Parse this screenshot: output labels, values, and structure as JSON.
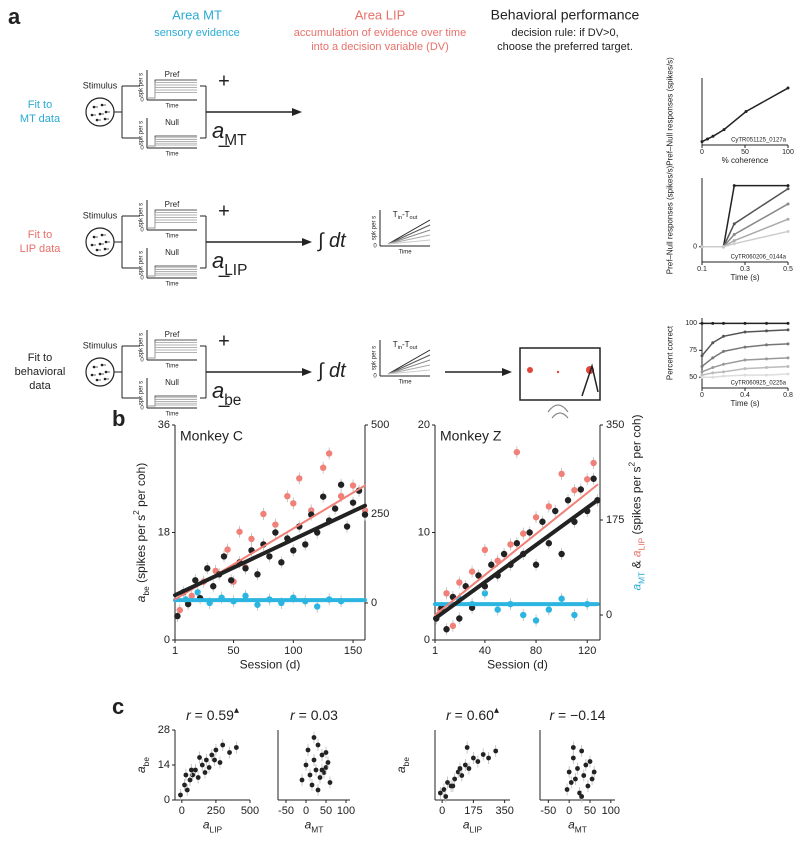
{
  "panel_labels": [
    "a",
    "b",
    "c"
  ],
  "header": {
    "mt_title": "Area MT",
    "mt_sub": "sensory evidence",
    "lip_title": "Area LIP",
    "lip_sub": [
      "accumulation of evidence over time",
      "into a decision variable (DV)"
    ],
    "beh_title": "Behavioral performance",
    "beh_sub": [
      "decision rule:  if DV>0,",
      "choose the preferred target."
    ]
  },
  "rows": [
    {
      "label": [
        "Fit to",
        "MT data"
      ],
      "color": "#29abd4",
      "weight": [
        {
          "text": "a",
          "style": "italic"
        },
        {
          "text": "MT",
          "style": "sub"
        }
      ]
    },
    {
      "label": [
        "Fit to",
        "LIP data"
      ],
      "color": "#e9706a",
      "weight": [
        {
          "text": "a",
          "style": "italic"
        },
        {
          "text": "LIP",
          "style": "sub"
        }
      ]
    },
    {
      "label": [
        "Fit to",
        "behavioral",
        "data"
      ],
      "color": "#222222",
      "weight": [
        {
          "text": "a",
          "style": "italic"
        },
        {
          "text": "be",
          "style": "sub"
        }
      ]
    }
  ],
  "diagram": {
    "stimulus": "Stimulus",
    "pref": "Pref",
    "null": "Null",
    "spk": "spk per s",
    "time": "Time",
    "zero": "0",
    "plus": "+",
    "minus": "–",
    "integral": [
      {
        "text": "∫ "
      },
      {
        "text": "dt",
        "style": "italic"
      }
    ],
    "dv_label": [
      {
        "text": "T"
      },
      {
        "text": "in",
        "style": "sub"
      },
      {
        "text": "-T"
      },
      {
        "text": "out",
        "style": "sub"
      }
    ]
  },
  "chart_data": [
    {
      "type": "line",
      "x": [
        0,
        6.4,
        12.8,
        25.6,
        51.2,
        100
      ],
      "series": [
        {
          "color": "#222222",
          "values": [
            0,
            4,
            8,
            18,
            45,
            80
          ]
        }
      ],
      "xlim": [
        0,
        100
      ],
      "ylim": [
        -5,
        95
      ],
      "xticks": [
        0,
        50,
        100
      ],
      "xlabel": "% coherence",
      "ylabel": "Pref–Null responses (spikes/s)",
      "annotation": "CyTR051125_0127a"
    },
    {
      "type": "line",
      "x": [
        0.1,
        0.2,
        0.25,
        0.5
      ],
      "series": [
        {
          "color": "#222222",
          "values": [
            0,
            0,
            40,
            40
          ]
        },
        {
          "color": "#555555",
          "values": [
            0,
            0,
            15,
            38
          ]
        },
        {
          "color": "#888888",
          "values": [
            0,
            0,
            8,
            28
          ]
        },
        {
          "color": "#aaaaaa",
          "values": [
            0,
            0,
            4,
            18
          ]
        },
        {
          "color": "#cccccc",
          "values": [
            0,
            0,
            2,
            10
          ]
        }
      ],
      "xlim": [
        0.1,
        0.5
      ],
      "ylim": [
        -10,
        45
      ],
      "xticks": [
        0.1,
        0.3,
        0.5
      ],
      "yticks": [
        0
      ],
      "xlabel": "Time (s)",
      "ylabel": "Pref–Null responses (spikes/s)",
      "annotation": "CyTR060206_0144a"
    },
    {
      "type": "line",
      "x": [
        0,
        0.1,
        0.2,
        0.4,
        0.6,
        0.8
      ],
      "series": [
        {
          "color": "#222222",
          "values": [
            100,
            100,
            100,
            100,
            100,
            100
          ]
        },
        {
          "color": "#555555",
          "values": [
            70,
            82,
            88,
            92,
            93,
            94
          ]
        },
        {
          "color": "#777777",
          "values": [
            60,
            68,
            74,
            78,
            80,
            81
          ]
        },
        {
          "color": "#999999",
          "values": [
            55,
            59,
            62,
            66,
            67,
            68
          ]
        },
        {
          "color": "#bbbbbb",
          "values": [
            52,
            54,
            55,
            58,
            59,
            60
          ]
        },
        {
          "color": "#dddddd",
          "values": [
            50,
            50,
            51,
            52,
            52,
            53
          ]
        }
      ],
      "xlim": [
        0,
        0.8
      ],
      "ylim": [
        40,
        105
      ],
      "xticks": [
        0,
        0.4,
        0.8
      ],
      "yticks": [
        50,
        75,
        100
      ],
      "xlabel": "Time (s)",
      "ylabel": "Percent correct",
      "annotation": "CyTR060925_0225a"
    },
    {
      "type": "scatter",
      "title": "Monkey C",
      "xlim": [
        1,
        160
      ],
      "xticks": [
        1,
        50,
        100,
        150
      ],
      "ylim": [
        0,
        36
      ],
      "yticks": [
        0,
        18,
        36
      ],
      "y2lim": [
        -104,
        500
      ],
      "y2ticks": [
        0,
        250,
        500
      ],
      "xlabel": "Session (d)",
      "ylabel": [
        {
          "text": "a",
          "style": "italic"
        },
        {
          "text": "be",
          "style": "sub"
        },
        {
          "text": " (spikes per s"
        },
        {
          "text": "2",
          "style": "sup"
        },
        {
          "text": " per coh)"
        }
      ],
      "series": [
        {
          "color": "#f08078",
          "axis": "y2",
          "x": [
            5,
            15,
            25,
            35,
            45,
            50,
            55,
            60,
            65,
            75,
            85,
            95,
            100,
            105,
            115,
            125,
            130,
            140,
            150,
            160
          ],
          "values": [
            -20,
            20,
            60,
            90,
            150,
            60,
            200,
            100,
            180,
            250,
            220,
            300,
            280,
            350,
            260,
            380,
            420,
            300,
            330,
            260
          ]
        },
        {
          "color": "#2bb5e0",
          "axis": "y2",
          "x": [
            10,
            20,
            30,
            40,
            50,
            60,
            70,
            80,
            90,
            100,
            110,
            120,
            130,
            140
          ],
          "values": [
            10,
            30,
            0,
            15,
            5,
            20,
            -5,
            10,
            0,
            15,
            5,
            -10,
            10,
            5
          ]
        },
        {
          "color": "#222222",
          "x": [
            3,
            8,
            12,
            18,
            22,
            28,
            33,
            38,
            42,
            48,
            55,
            60,
            65,
            70,
            75,
            80,
            85,
            90,
            95,
            100,
            105,
            110,
            115,
            120,
            125,
            130,
            135,
            140,
            145,
            150,
            155,
            160
          ],
          "values": [
            4,
            8,
            6,
            10,
            7,
            12,
            9,
            11,
            14,
            10,
            13,
            12,
            15,
            11,
            16,
            14,
            18,
            13,
            17,
            15,
            19,
            16,
            21,
            18,
            24,
            20,
            22,
            26,
            19,
            23,
            25,
            21
          ]
        }
      ],
      "fits": [
        {
          "color": "#2bb5e0",
          "axis": "y2",
          "x": [
            1,
            160
          ],
          "values": [
            8,
            8
          ]
        },
        {
          "color": "#f08078",
          "axis": "y2",
          "x": [
            1,
            160
          ],
          "values": [
            10,
            330
          ]
        },
        {
          "color": "#222222",
          "x": [
            1,
            160
          ],
          "values": [
            7.5,
            22.5
          ]
        }
      ]
    },
    {
      "type": "scatter",
      "title": "Monkey Z",
      "xlim": [
        1,
        130
      ],
      "xticks": [
        1,
        40,
        80,
        120
      ],
      "ylim": [
        0,
        20
      ],
      "yticks": [
        0,
        10,
        20
      ],
      "y2lim": [
        -46,
        350
      ],
      "y2ticks": [
        0,
        175,
        350
      ],
      "xlabel": "Session (d)",
      "y2label": [
        {
          "text": "a",
          "style": "italic",
          "color": "#29abd4"
        },
        {
          "text": "MT",
          "style": "sub",
          "color": "#29abd4"
        },
        {
          "text": " & "
        },
        {
          "text": "a",
          "style": "italic",
          "color": "#e9706a"
        },
        {
          "text": "LIP",
          "style": "sub",
          "color": "#e9706a"
        },
        {
          "text": " (spikes per s"
        },
        {
          "text": "2",
          "style": "sup"
        },
        {
          "text": " per coh)"
        }
      ],
      "series": [
        {
          "color": "#f08078",
          "axis": "y2",
          "x": [
            5,
            10,
            15,
            20,
            30,
            40,
            50,
            60,
            65,
            70,
            80,
            90,
            100,
            110,
            120,
            125
          ],
          "values": [
            10,
            40,
            -20,
            60,
            80,
            120,
            100,
            130,
            300,
            150,
            180,
            200,
            260,
            230,
            250,
            280
          ]
        },
        {
          "color": "#2bb5e0",
          "axis": "y2",
          "x": [
            20,
            30,
            40,
            50,
            60,
            70,
            80,
            90,
            100,
            110,
            120
          ],
          "values": [
            30,
            20,
            40,
            10,
            20,
            0,
            -10,
            10,
            30,
            0,
            20
          ]
        },
        {
          "color": "#222222",
          "x": [
            2,
            6,
            10,
            15,
            20,
            25,
            30,
            35,
            40,
            45,
            50,
            55,
            60,
            65,
            70,
            75,
            80,
            85,
            90,
            95,
            100,
            105,
            110,
            115,
            120,
            125,
            128
          ],
          "values": [
            2,
            3,
            1,
            4,
            2,
            5,
            3,
            6,
            5,
            7,
            6,
            8,
            7,
            9,
            8,
            10,
            7,
            11,
            9,
            12,
            8,
            13,
            11,
            14,
            12,
            15,
            13
          ]
        }
      ],
      "fits": [
        {
          "color": "#2bb5e0",
          "axis": "y2",
          "x": [
            1,
            128
          ],
          "values": [
            20,
            20
          ]
        },
        {
          "color": "#f08078",
          "axis": "y2",
          "x": [
            1,
            128
          ],
          "values": [
            0,
            240
          ]
        },
        {
          "color": "#222222",
          "x": [
            1,
            128
          ],
          "values": [
            2,
            13
          ]
        }
      ]
    },
    {
      "type": "scatter",
      "title": [
        {
          "text": "r",
          "style": "italic"
        },
        {
          "text": " = 0.59"
        },
        {
          "text": "▴",
          "style": "sup"
        }
      ],
      "xlim": [
        -50,
        500
      ],
      "xticks": [
        0,
        250,
        500
      ],
      "ylim": [
        0,
        28
      ],
      "yticks": [
        0,
        14,
        28
      ],
      "xlabel": [
        {
          "text": "a",
          "style": "italic"
        },
        {
          "text": "LIP",
          "style": "sub"
        }
      ],
      "ylabel": [
        {
          "text": "a",
          "style": "italic"
        },
        {
          "text": "be",
          "style": "sub"
        }
      ],
      "series": [
        {
          "color": "#222222",
          "x": [
            -10,
            20,
            40,
            60,
            80,
            100,
            120,
            150,
            180,
            200,
            220,
            250,
            280,
            300,
            350,
            400,
            30,
            70,
            130,
            170,
            240
          ],
          "values": [
            2,
            6,
            4,
            8,
            10,
            12,
            9,
            14,
            16,
            13,
            18,
            20,
            15,
            22,
            19,
            21,
            10,
            12,
            17,
            11,
            16
          ]
        }
      ]
    },
    {
      "type": "scatter",
      "title": [
        {
          "text": "r",
          "style": "italic"
        },
        {
          "text": " = 0.03"
        }
      ],
      "xlim": [
        -70,
        110
      ],
      "xticks": [
        -50,
        0,
        50,
        100
      ],
      "ylim": [
        0,
        28
      ],
      "xlabel": [
        {
          "text": "a",
          "style": "italic"
        },
        {
          "text": "MT",
          "style": "sub"
        }
      ],
      "series": [
        {
          "color": "#222222",
          "x": [
            -10,
            0,
            5,
            10,
            15,
            20,
            25,
            30,
            35,
            40,
            45,
            50,
            55,
            60,
            20,
            30,
            40,
            50
          ],
          "values": [
            8,
            14,
            20,
            10,
            6,
            16,
            12,
            22,
            9,
            18,
            11,
            13,
            15,
            7,
            25,
            4,
            12,
            19
          ]
        }
      ]
    },
    {
      "type": "scatter",
      "title": [
        {
          "text": "r",
          "style": "italic"
        },
        {
          "text": " = 0.60"
        },
        {
          "text": "▴",
          "style": "sup"
        }
      ],
      "xlim": [
        -40,
        380
      ],
      "xticks": [
        0,
        175,
        350
      ],
      "ylim": [
        0,
        20
      ],
      "xlabel": [
        {
          "text": "a",
          "style": "italic"
        },
        {
          "text": "LIP",
          "style": "sub"
        }
      ],
      "ylabel": [
        {
          "text": "a",
          "style": "italic"
        },
        {
          "text": "be",
          "style": "sub"
        }
      ],
      "series": [
        {
          "color": "#222222",
          "x": [
            -10,
            10,
            30,
            50,
            70,
            90,
            110,
            130,
            150,
            175,
            200,
            230,
            260,
            300,
            20,
            60,
            100,
            140
          ],
          "values": [
            2,
            3,
            5,
            4,
            6,
            8,
            7,
            10,
            9,
            12,
            11,
            13,
            12,
            14,
            1,
            4,
            9,
            15
          ]
        }
      ]
    },
    {
      "type": "scatter",
      "title": [
        {
          "text": "r",
          "style": "italic"
        },
        {
          "text": " = −0.14"
        }
      ],
      "xlim": [
        -70,
        110
      ],
      "xticks": [
        -50,
        0,
        50,
        100
      ],
      "ylim": [
        0,
        20
      ],
      "xlabel": [
        {
          "text": "a",
          "style": "italic"
        },
        {
          "text": "MT",
          "style": "sub"
        }
      ],
      "series": [
        {
          "color": "#222222",
          "x": [
            -5,
            0,
            5,
            10,
            15,
            20,
            25,
            30,
            35,
            40,
            45,
            50,
            55,
            60,
            10,
            30
          ],
          "values": [
            3,
            8,
            5,
            12,
            6,
            9,
            2,
            14,
            7,
            10,
            4,
            11,
            6,
            8,
            15,
            1
          ]
        }
      ]
    }
  ]
}
